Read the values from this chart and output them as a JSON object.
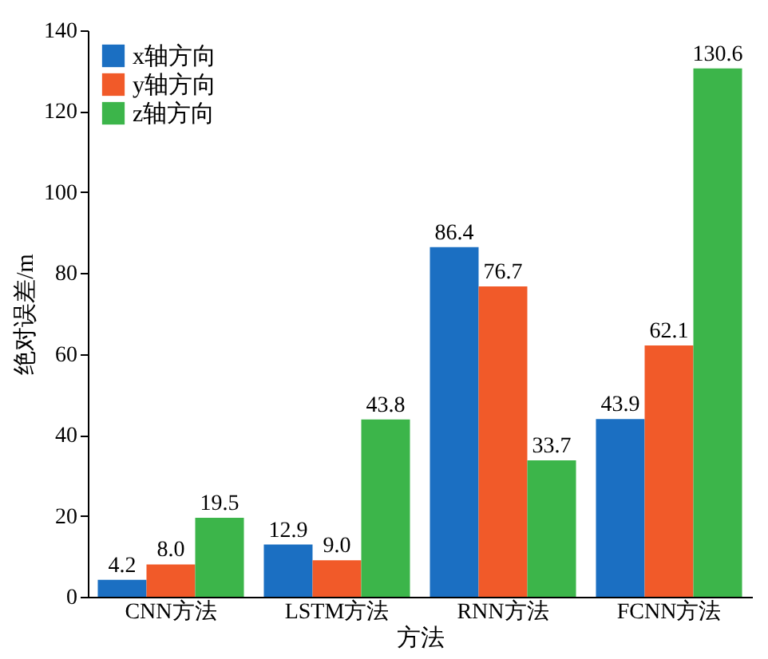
{
  "chart_data": {
    "type": "bar",
    "xlabel": "方法",
    "ylabel": "绝对误差/m",
    "categories": [
      "CNN方法",
      "LSTM方法",
      "RNN方法",
      "FCNN方法"
    ],
    "series": [
      {
        "name": "x轴方向",
        "color": "#1b6fc2",
        "values": [
          4.2,
          12.9,
          86.4,
          43.9
        ],
        "value_labels": [
          "4.2",
          "12.9",
          "86.4",
          "43.9"
        ]
      },
      {
        "name": "y轴方向",
        "color": "#f15a29",
        "values": [
          8.0,
          9.0,
          76.7,
          62.1
        ],
        "value_labels": [
          "8.0",
          "9.0",
          "76.7",
          "62.1"
        ]
      },
      {
        "name": "z轴方向",
        "color": "#3cb54a",
        "values": [
          19.5,
          43.8,
          33.7,
          130.6
        ],
        "value_labels": [
          "19.5",
          "43.8",
          "33.7",
          "130.6"
        ]
      }
    ],
    "ylim": [
      0,
      140
    ],
    "yticks": [
      0,
      20,
      40,
      60,
      80,
      100,
      120,
      140
    ],
    "legend": "top left"
  }
}
